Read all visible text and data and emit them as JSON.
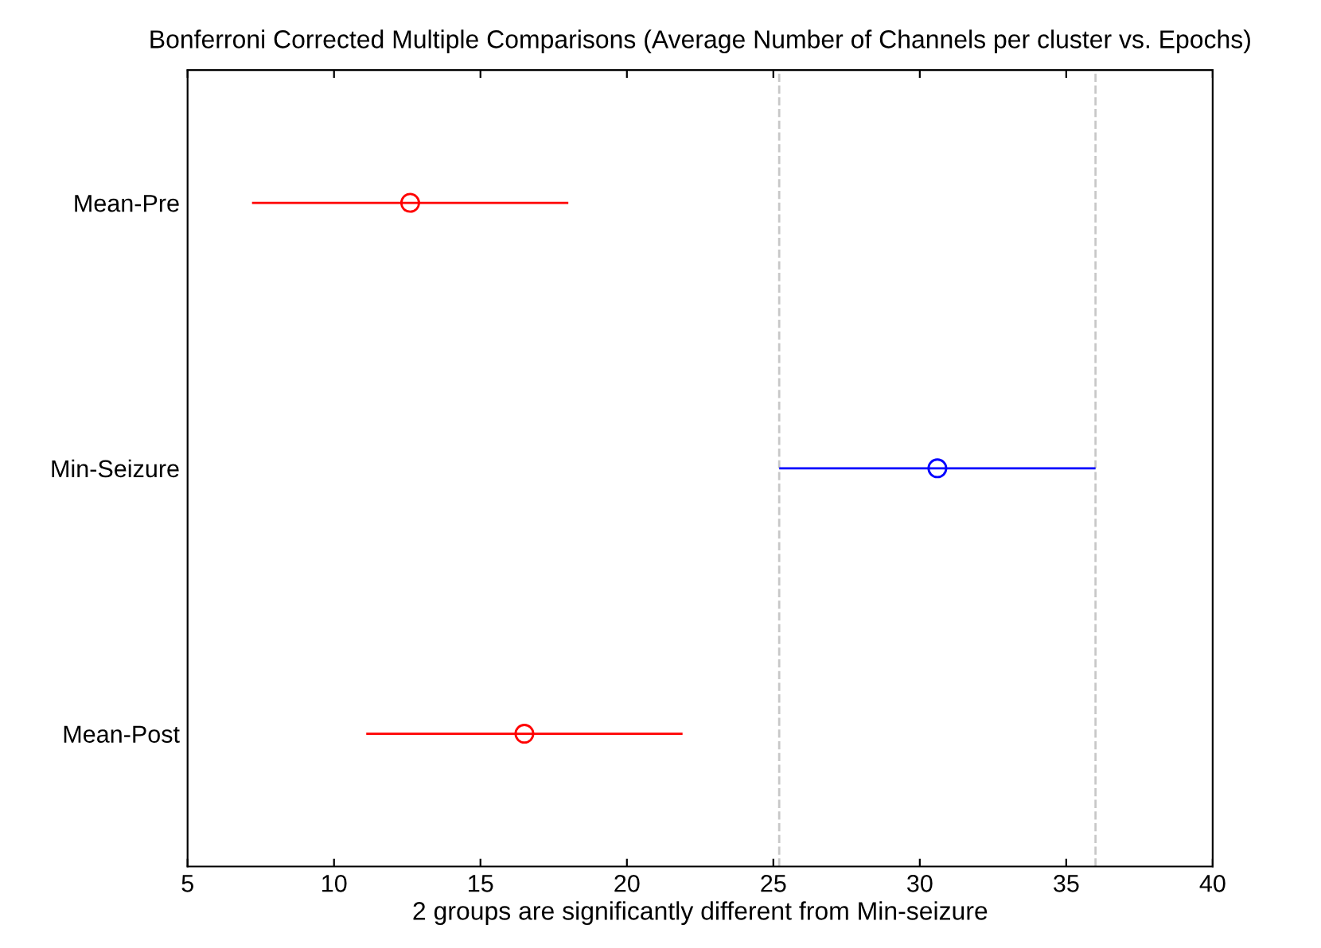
{
  "chart_data": {
    "type": "scatter",
    "orientation": "horizontal",
    "title": "Bonferroni Corrected Multiple Comparisons (Average Number of Channels per cluster vs. Epochs)",
    "xlabel": "2 groups are significantly different from Min-seizure",
    "categories": [
      "Mean-Pre",
      "Min-Seizure",
      "Mean-Post"
    ],
    "values": [
      12.6,
      30.6,
      16.5
    ],
    "errors": [
      5.4,
      5.4,
      5.4
    ],
    "colors": [
      "#ff0000",
      "#0000ff",
      "#ff0000"
    ],
    "marker": "circle",
    "xlim": [
      5,
      40
    ],
    "xticks": [
      5,
      10,
      15,
      20,
      25,
      30,
      35,
      40
    ],
    "ref_lines": [
      {
        "axis": "x",
        "value": 25.2,
        "color": "#c8c8c8",
        "line_style": "dashed"
      },
      {
        "axis": "x",
        "value": 36.0,
        "color": "#c8c8c8",
        "line_style": "dashed"
      }
    ],
    "grid": false
  }
}
